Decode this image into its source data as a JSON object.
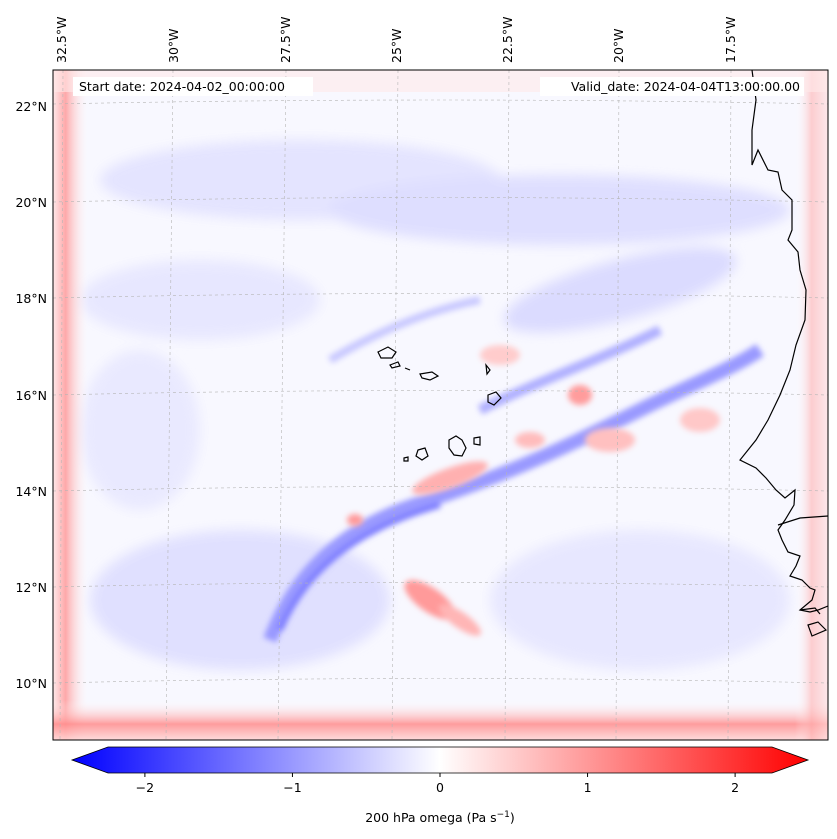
{
  "header": {
    "start_date": "Start date: 2024-04-02_00:00:00",
    "valid_date": "Valid_date: 2024-04-04T13:00:00.00"
  },
  "lon_ticks": [
    "32.5°W",
    "30°W",
    "27.5°W",
    "25°W",
    "22.5°W",
    "20°W",
    "17.5°W"
  ],
  "lat_ticks": [
    "22°N",
    "20°N",
    "18°N",
    "16°N",
    "14°N",
    "12°N",
    "10°N"
  ],
  "colorbar": {
    "ticks": [
      "−2",
      "−1",
      "0",
      "1",
      "2"
    ],
    "tick_values": [
      -2,
      -1,
      0,
      1,
      2
    ],
    "range": [
      -2.5,
      2.5
    ],
    "label": "200 hPa omega (Pa s",
    "label_sup": "−1",
    "label_end": ")",
    "colors": {
      "negative": "#0000ff",
      "zero": "#ffffff",
      "positive": "#ff0000"
    }
  },
  "field": {
    "name": "200 hPa omega",
    "units": "Pa s−1",
    "colormap": "bwr",
    "gridlines": true
  }
}
